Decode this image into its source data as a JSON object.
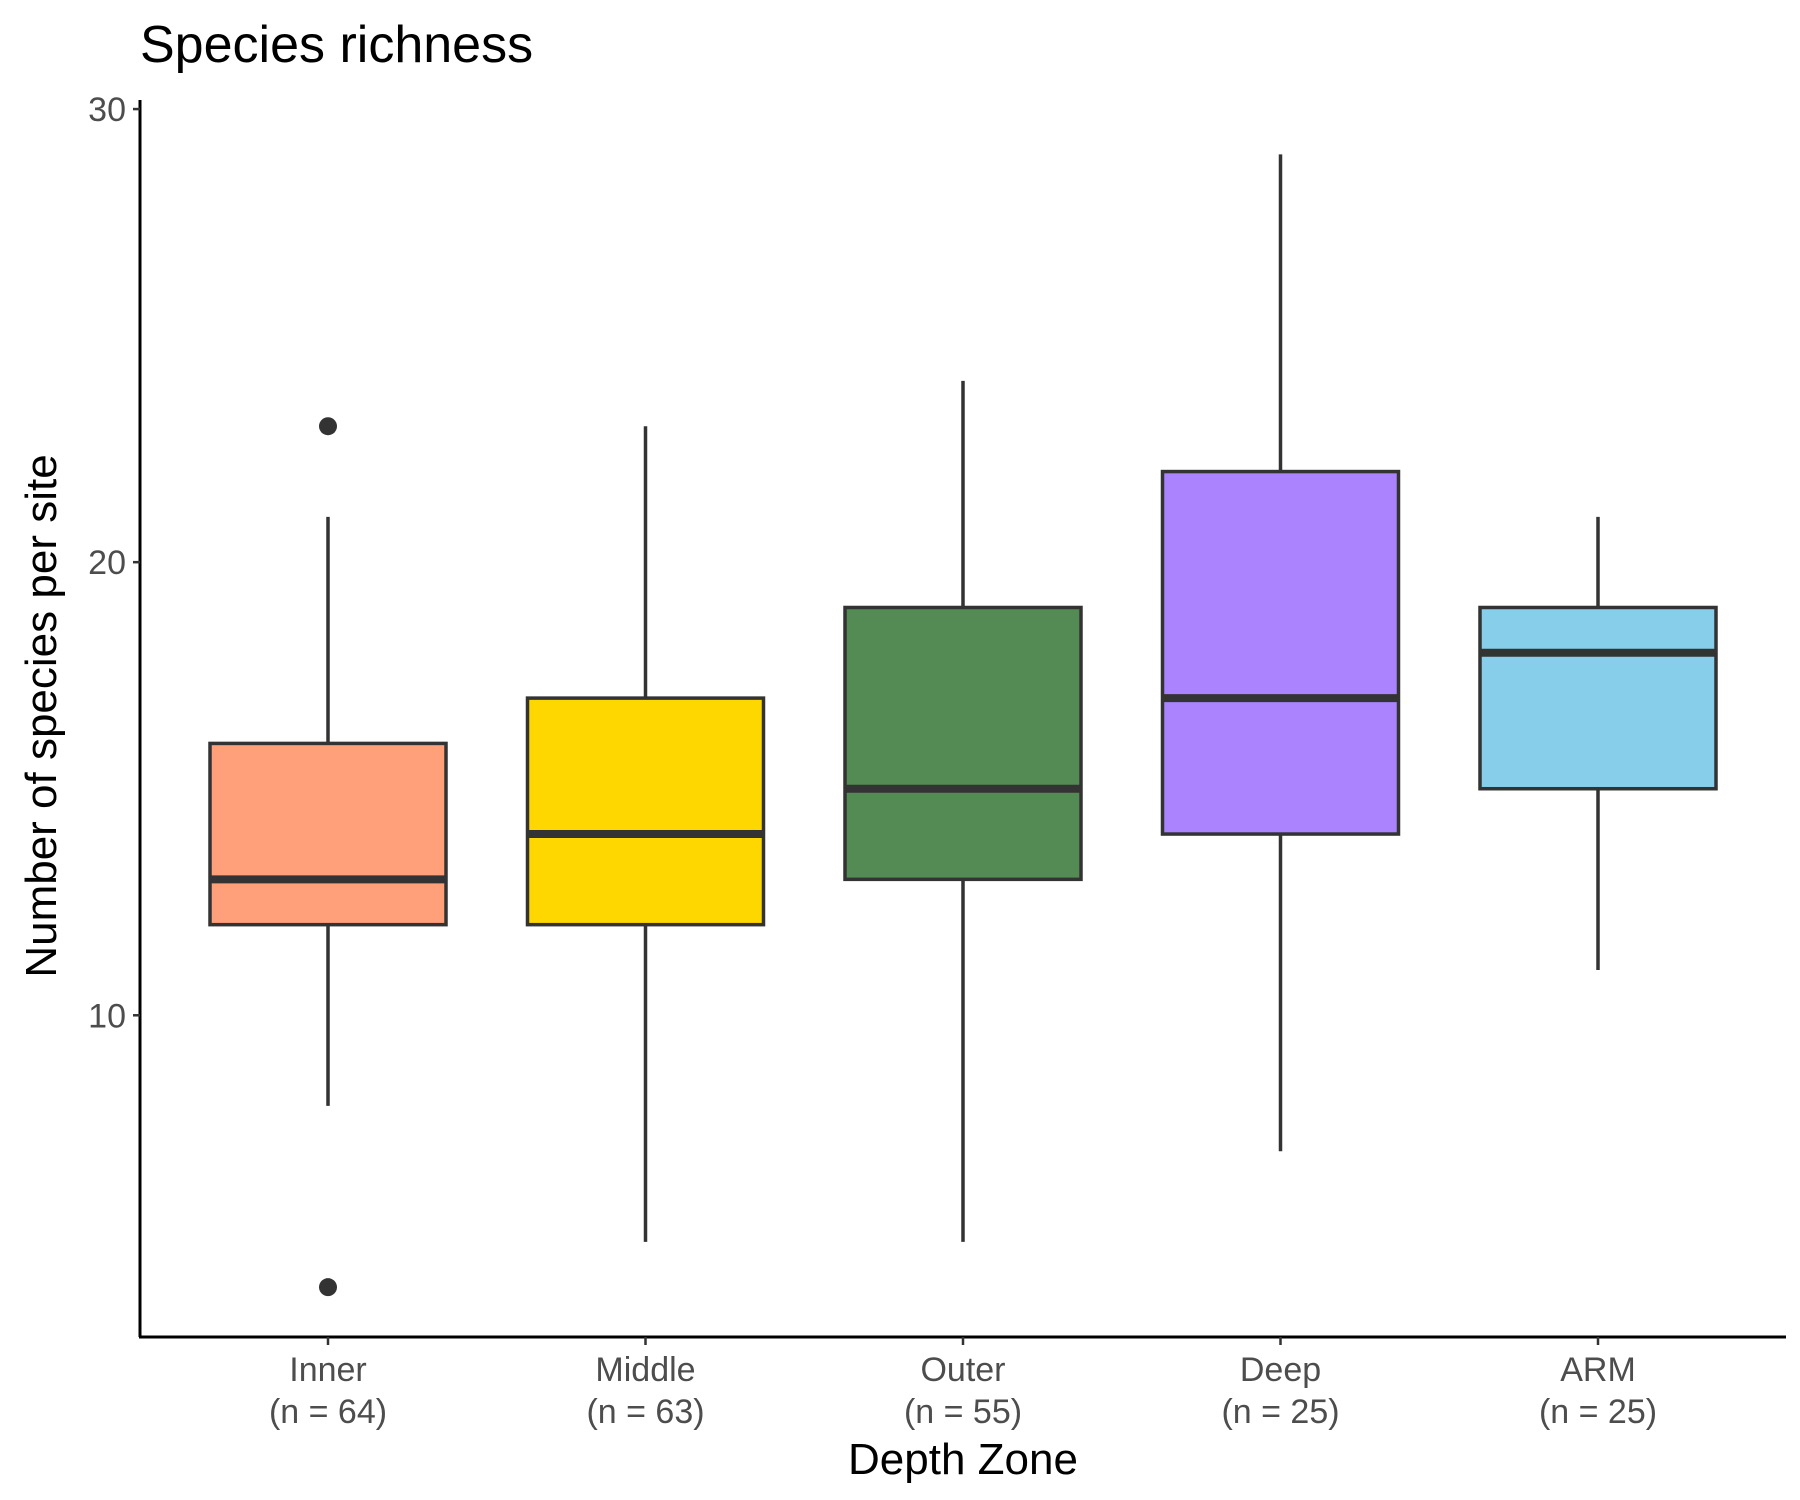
{
  "chart_data": {
    "type": "boxplot",
    "title": "Species richness",
    "xlabel": "Depth Zone",
    "ylabel": "Number of species per site",
    "ylim": [
      2.9,
      30.2
    ],
    "y_ticks": [
      10,
      20,
      30
    ],
    "legend": "none",
    "grid": false,
    "categories": [
      {
        "name": "Inner",
        "n_label": "(n = 64)",
        "color": "#FFA07A",
        "q1": 12,
        "median": 13,
        "q3": 16,
        "whisker_low": 8,
        "whisker_high": 21,
        "outliers": [
          23,
          4
        ]
      },
      {
        "name": "Middle",
        "n_label": "(n = 63)",
        "color": "#FFD700",
        "q1": 12,
        "median": 14,
        "q3": 17,
        "whisker_low": 5,
        "whisker_high": 23,
        "outliers": []
      },
      {
        "name": "Outer",
        "n_label": "(n = 55)",
        "color": "#548B54",
        "q1": 13,
        "median": 15,
        "q3": 19,
        "whisker_low": 5,
        "whisker_high": 24,
        "outliers": []
      },
      {
        "name": "Deep",
        "n_label": "(n = 25)",
        "color": "#AB82FF",
        "q1": 14,
        "median": 17,
        "q3": 22,
        "whisker_low": 7,
        "whisker_high": 29,
        "outliers": []
      },
      {
        "name": "ARM",
        "n_label": "(n = 25)",
        "color": "#87CEEB",
        "q1": 15,
        "median": 18,
        "q3": 19,
        "whisker_low": 11,
        "whisker_high": 21,
        "outliers": []
      }
    ]
  }
}
